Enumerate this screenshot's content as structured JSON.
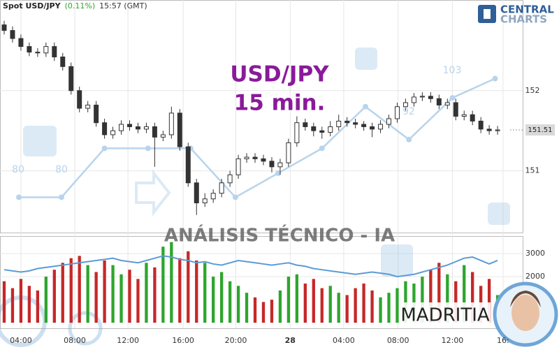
{
  "header": {
    "symbol": "Spot USD/JPY",
    "change": "(0.11%)",
    "time": "15:57 (GMT)"
  },
  "logo": {
    "line1": "CENTRAL",
    "line2": "CHARTS"
  },
  "watermark": {
    "title": "USD/JPY",
    "timeframe": "15 min.",
    "caption": "ANÁLISIS TÉCNICO - IA",
    "brand": "MADRITIA"
  },
  "chart_data": {
    "type": "candlestick",
    "xlim": [
      -0.5,
      62
    ],
    "xticks": [
      {
        "value": 2.0,
        "label": "04:00"
      },
      {
        "value": 8.44,
        "label": "08:00"
      },
      {
        "value": 14.8,
        "label": "12:00"
      },
      {
        "value": 21.4,
        "label": "16:00"
      },
      {
        "value": 27.7,
        "label": "20:00"
      },
      {
        "value": 34.2,
        "label": "28"
      },
      {
        "value": 40.6,
        "label": "04:00"
      },
      {
        "value": 47.1,
        "label": "08:00"
      },
      {
        "value": 53.6,
        "label": "12:00"
      },
      {
        "value": 59.65,
        "label": "16:"
      }
    ],
    "ylim": [
      150.23,
      153.13
    ],
    "yticks": [
      151,
      152
    ],
    "grid": true,
    "last_price": 151.51,
    "candle_color": "#333333",
    "ohlc": [
      [
        152.82,
        152.87,
        152.7,
        152.75
      ],
      [
        152.75,
        152.8,
        152.6,
        152.65
      ],
      [
        152.65,
        152.7,
        152.5,
        152.55
      ],
      [
        152.55,
        152.6,
        152.43,
        152.48
      ],
      [
        152.48,
        152.53,
        152.42,
        152.47
      ],
      [
        152.47,
        152.6,
        152.42,
        152.55
      ],
      [
        152.55,
        152.6,
        152.37,
        152.42
      ],
      [
        152.42,
        152.47,
        152.25,
        152.3
      ],
      [
        152.3,
        152.35,
        151.95,
        152.0
      ],
      [
        152.0,
        152.05,
        151.73,
        151.78
      ],
      [
        151.78,
        151.87,
        151.73,
        151.82
      ],
      [
        151.82,
        151.87,
        151.55,
        151.6
      ],
      [
        151.6,
        151.65,
        151.4,
        151.45
      ],
      [
        151.45,
        151.55,
        151.4,
        151.5
      ],
      [
        151.5,
        151.63,
        151.45,
        151.58
      ],
      [
        151.58,
        151.63,
        151.5,
        151.55
      ],
      [
        151.55,
        151.6,
        151.47,
        151.52
      ],
      [
        151.52,
        151.6,
        151.47,
        151.55
      ],
      [
        151.55,
        151.6,
        151.05,
        151.42
      ],
      [
        151.42,
        151.5,
        151.37,
        151.45
      ],
      [
        151.45,
        151.8,
        151.4,
        151.72
      ],
      [
        151.72,
        151.77,
        151.25,
        151.3
      ],
      [
        151.3,
        151.35,
        150.8,
        150.85
      ],
      [
        150.85,
        150.9,
        150.45,
        150.6
      ],
      [
        150.6,
        150.72,
        150.55,
        150.65
      ],
      [
        150.65,
        150.77,
        150.6,
        150.72
      ],
      [
        150.72,
        150.9,
        150.67,
        150.85
      ],
      [
        150.85,
        151.0,
        150.8,
        150.95
      ],
      [
        150.95,
        151.2,
        150.9,
        151.15
      ],
      [
        151.15,
        151.22,
        151.1,
        151.17
      ],
      [
        151.17,
        151.22,
        151.1,
        151.15
      ],
      [
        151.15,
        151.2,
        151.07,
        151.12
      ],
      [
        151.12,
        151.17,
        150.98,
        151.05
      ],
      [
        151.05,
        151.15,
        150.95,
        151.1
      ],
      [
        151.1,
        151.4,
        151.05,
        151.35
      ],
      [
        151.35,
        151.68,
        151.3,
        151.6
      ],
      [
        151.6,
        151.65,
        151.5,
        151.55
      ],
      [
        151.55,
        151.6,
        151.43,
        151.5
      ],
      [
        151.5,
        151.55,
        151.4,
        151.48
      ],
      [
        151.48,
        151.62,
        151.43,
        151.55
      ],
      [
        151.55,
        151.7,
        151.5,
        151.62
      ],
      [
        151.62,
        151.67,
        151.55,
        151.6
      ],
      [
        151.6,
        151.65,
        151.53,
        151.58
      ],
      [
        151.58,
        151.62,
        151.5,
        151.55
      ],
      [
        151.55,
        151.6,
        151.42,
        151.52
      ],
      [
        151.52,
        151.63,
        151.47,
        151.58
      ],
      [
        151.58,
        151.7,
        151.53,
        151.65
      ],
      [
        151.65,
        151.85,
        151.6,
        151.8
      ],
      [
        151.8,
        151.9,
        151.75,
        151.85
      ],
      [
        151.85,
        151.97,
        151.8,
        151.92
      ],
      [
        151.92,
        151.98,
        151.87,
        151.93
      ],
      [
        151.93,
        151.98,
        151.85,
        151.9
      ],
      [
        151.9,
        151.95,
        151.77,
        151.82
      ],
      [
        151.82,
        151.9,
        151.77,
        151.85
      ],
      [
        151.85,
        151.9,
        151.63,
        151.68
      ],
      [
        151.68,
        151.75,
        151.63,
        151.7
      ],
      [
        151.7,
        151.75,
        151.57,
        151.62
      ],
      [
        151.62,
        151.67,
        151.47,
        151.52
      ],
      [
        151.52,
        151.57,
        151.45,
        151.5
      ],
      [
        151.5,
        151.56,
        151.45,
        151.51
      ]
    ],
    "overlay": {
      "color": "#b8d4ec",
      "x": [
        1.76,
        6.85,
        12.0,
        17.2,
        22.3,
        27.65,
        32.75,
        38.0,
        43.2,
        48.4,
        53.6,
        58.7
      ],
      "values": [
        150.67,
        150.67,
        151.28,
        151.28,
        151.28,
        150.67,
        150.97,
        151.28,
        151.8,
        151.39,
        151.91,
        152.15
      ]
    },
    "overlay_labels": [
      80,
      80,
      103,
      92
    ],
    "volume": {
      "ylim": [
        -100,
        3760
      ],
      "yticks": [
        2000,
        3000
      ],
      "up_color": "#2ea52e",
      "down_color": "#c62828",
      "values": [
        1800,
        1500,
        1900,
        1600,
        1400,
        2000,
        2300,
        2600,
        2800,
        2900,
        2500,
        2200,
        2700,
        2500,
        2100,
        2300,
        1900,
        2600,
        2400,
        3300,
        3500,
        2800,
        3100,
        2700,
        2600,
        2000,
        2200,
        1800,
        1600,
        1300,
        1100,
        900,
        1000,
        1400,
        2000,
        2100,
        1700,
        1900,
        1500,
        1600,
        1300,
        1200,
        1500,
        1700,
        1400,
        1100,
        1300,
        1500,
        1800,
        1700,
        2000,
        2300,
        2600,
        2100,
        1800,
        2500,
        2200,
        1600,
        1900,
        1200
      ],
      "ma_color": "#5b9bd5",
      "ma": [
        2300,
        2250,
        2200,
        2250,
        2350,
        2400,
        2450,
        2500,
        2550,
        2600,
        2650,
        2700,
        2750,
        2800,
        2700,
        2650,
        2600,
        2700,
        2800,
        2900,
        2850,
        2750,
        2700,
        2600,
        2650,
        2550,
        2500,
        2600,
        2700,
        2650,
        2600,
        2550,
        2500,
        2550,
        2600,
        2500,
        2450,
        2350,
        2300,
        2250,
        2200,
        2150,
        2100,
        2150,
        2200,
        2150,
        2100,
        2000,
        2050,
        2100,
        2200,
        2300,
        2400,
        2500,
        2650,
        2800,
        2850,
        2700,
        2550,
        2700
      ]
    }
  }
}
